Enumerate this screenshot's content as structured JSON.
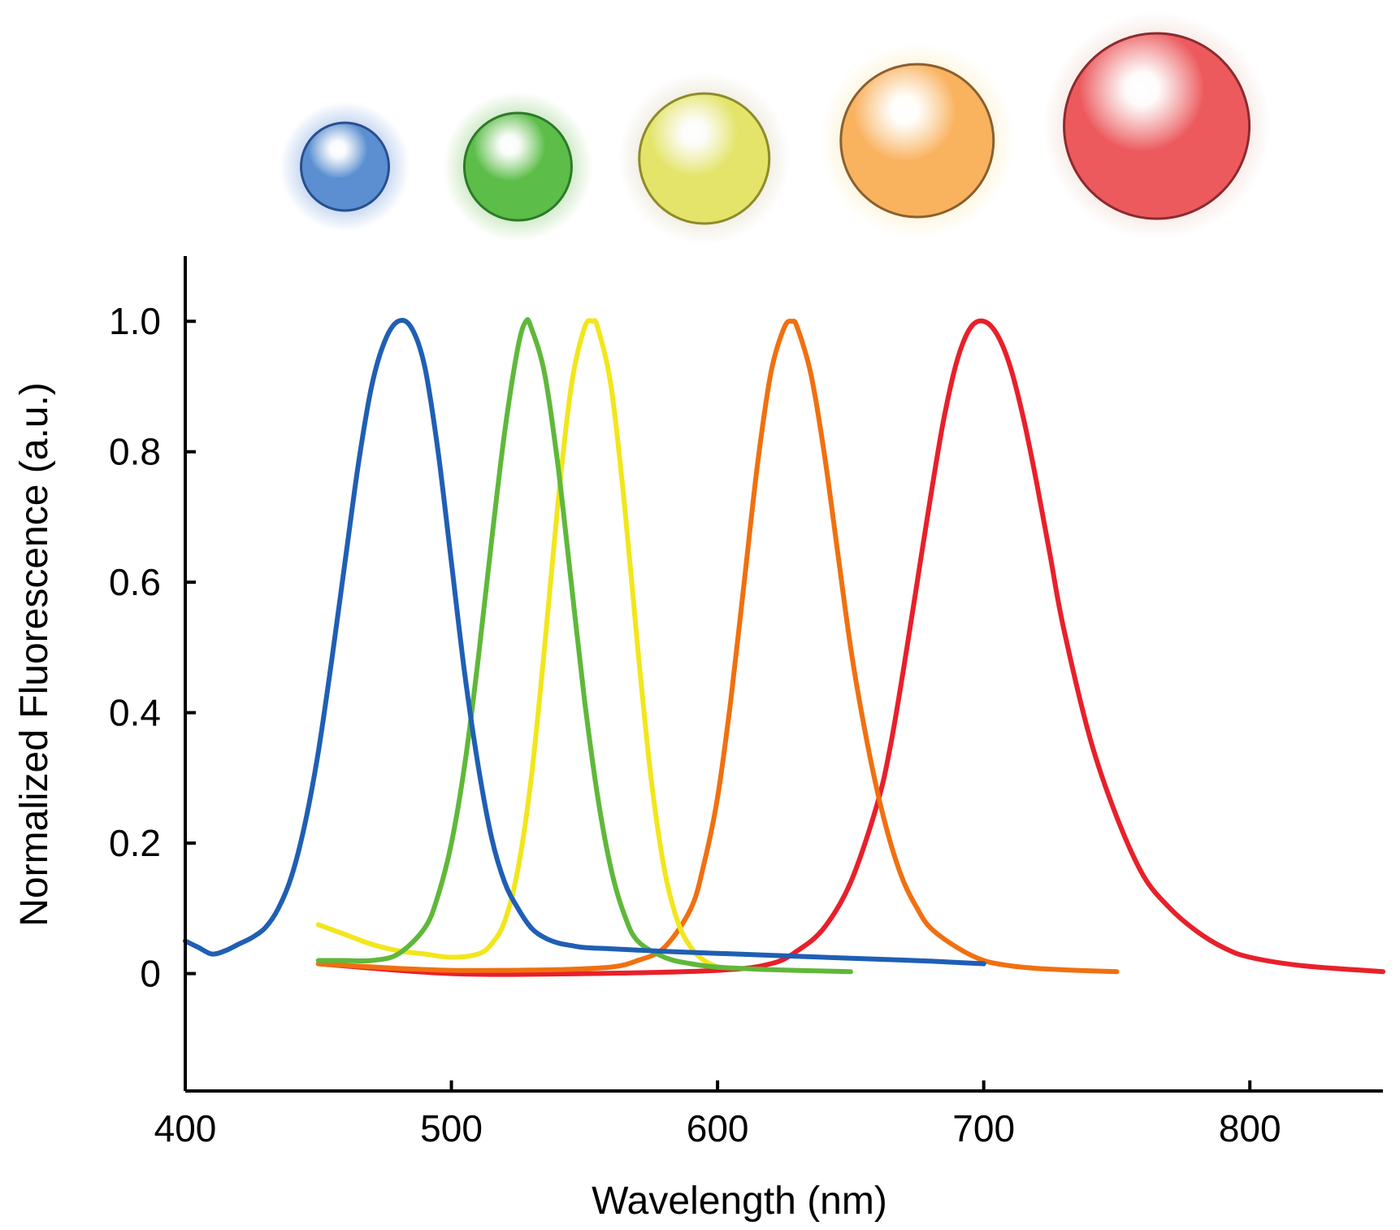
{
  "chart_data": {
    "type": "line",
    "title": "",
    "xlabel": "Wavelength (nm)",
    "ylabel": "Normalized Fluorescence (a.u.)",
    "xlim": [
      400,
      850
    ],
    "ylim": [
      -0.18,
      1.1
    ],
    "xticks": [
      400,
      500,
      600,
      700,
      800
    ],
    "xtick_labels": [
      "400",
      "500",
      "600",
      "700",
      "800"
    ],
    "yticks": [
      0,
      0.2,
      0.4,
      0.6,
      0.8,
      1.0
    ],
    "ytick_labels": [
      "0",
      "0.2",
      "0.4",
      "0.6",
      "0.8",
      "1.0"
    ],
    "grid": false,
    "legend": "none",
    "series": [
      {
        "name": "blue",
        "color": "#1f5fb4",
        "x": [
          400,
          405,
          410,
          415,
          420,
          425,
          430,
          435,
          440,
          445,
          450,
          455,
          460,
          465,
          470,
          475,
          480,
          485,
          490,
          495,
          500,
          505,
          510,
          515,
          520,
          525,
          530,
          535,
          540,
          545,
          550,
          560,
          570,
          580,
          600,
          620,
          640,
          660,
          680,
          700
        ],
        "values": [
          0.05,
          0.04,
          0.03,
          0.035,
          0.045,
          0.055,
          0.07,
          0.1,
          0.15,
          0.23,
          0.34,
          0.48,
          0.63,
          0.78,
          0.9,
          0.97,
          1.0,
          0.99,
          0.93,
          0.8,
          0.63,
          0.46,
          0.32,
          0.21,
          0.14,
          0.1,
          0.07,
          0.055,
          0.047,
          0.043,
          0.04,
          0.038,
          0.036,
          0.034,
          0.031,
          0.028,
          0.025,
          0.022,
          0.019,
          0.015
        ]
      },
      {
        "name": "green",
        "color": "#5fb83a",
        "x": [
          450,
          460,
          470,
          480,
          490,
          495,
          500,
          505,
          510,
          515,
          520,
          525,
          528,
          530,
          535,
          540,
          545,
          550,
          555,
          560,
          565,
          570,
          580,
          590,
          600,
          620,
          650
        ],
        "values": [
          0.02,
          0.02,
          0.02,
          0.03,
          0.07,
          0.12,
          0.2,
          0.32,
          0.48,
          0.66,
          0.83,
          0.96,
          1.0,
          0.99,
          0.92,
          0.78,
          0.6,
          0.42,
          0.27,
          0.16,
          0.09,
          0.05,
          0.025,
          0.015,
          0.01,
          0.006,
          0.003
        ]
      },
      {
        "name": "yellow",
        "color": "#f2e61c",
        "x": [
          450,
          460,
          470,
          480,
          490,
          500,
          510,
          515,
          520,
          525,
          530,
          535,
          540,
          545,
          550,
          553,
          555,
          560,
          565,
          570,
          575,
          580,
          585,
          590,
          595,
          600
        ],
        "values": [
          0.075,
          0.06,
          0.045,
          0.035,
          0.03,
          0.025,
          0.03,
          0.045,
          0.08,
          0.16,
          0.3,
          0.5,
          0.72,
          0.9,
          0.99,
          1.0,
          0.99,
          0.9,
          0.72,
          0.5,
          0.3,
          0.16,
          0.08,
          0.04,
          0.02,
          0.01
        ]
      },
      {
        "name": "orange",
        "color": "#f07010",
        "x": [
          450,
          480,
          500,
          520,
          540,
          560,
          570,
          580,
          590,
          595,
          600,
          605,
          610,
          615,
          620,
          625,
          628,
          630,
          635,
          640,
          645,
          650,
          655,
          660,
          665,
          670,
          675,
          680,
          690,
          700,
          710,
          720,
          735,
          750
        ],
        "values": [
          0.015,
          0.008,
          0.005,
          0.005,
          0.006,
          0.01,
          0.02,
          0.04,
          0.1,
          0.17,
          0.27,
          0.42,
          0.6,
          0.78,
          0.92,
          0.99,
          1.0,
          0.99,
          0.92,
          0.8,
          0.65,
          0.5,
          0.38,
          0.28,
          0.2,
          0.14,
          0.1,
          0.07,
          0.04,
          0.02,
          0.012,
          0.008,
          0.005,
          0.003
        ]
      },
      {
        "name": "red",
        "color": "#e8202a",
        "x": [
          450,
          500,
          550,
          600,
          620,
          630,
          640,
          650,
          660,
          665,
          670,
          675,
          680,
          685,
          690,
          695,
          700,
          705,
          710,
          715,
          720,
          725,
          730,
          740,
          750,
          760,
          770,
          780,
          790,
          800,
          820,
          850
        ],
        "values": [
          0.015,
          0.0,
          0.0,
          0.005,
          0.015,
          0.035,
          0.07,
          0.14,
          0.26,
          0.35,
          0.47,
          0.6,
          0.73,
          0.85,
          0.94,
          0.99,
          1.0,
          0.98,
          0.93,
          0.85,
          0.75,
          0.64,
          0.53,
          0.36,
          0.24,
          0.15,
          0.1,
          0.065,
          0.04,
          0.025,
          0.012,
          0.003
        ]
      }
    ],
    "markers": [
      {
        "name": "blue-dot",
        "x": 460,
        "fill": "#5b8fd1",
        "edge": "#2a4f8e",
        "glow": "#b7cdee"
      },
      {
        "name": "green-dot",
        "x": 525,
        "fill": "#5cbd48",
        "edge": "#2d7a2a",
        "glow": "#b9e0ad"
      },
      {
        "name": "yellow-dot",
        "x": 595,
        "fill": "#e4e46a",
        "edge": "#8c8c2a",
        "glow": "#e8e2cf"
      },
      {
        "name": "orange-dot",
        "x": 675,
        "fill": "#f9b25e",
        "edge": "#8a6030",
        "glow": "#fbeec4"
      },
      {
        "name": "red-dot",
        "x": 765,
        "fill": "#ec5a5e",
        "edge": "#8c2a2e",
        "glow": "#efd5cc"
      }
    ]
  }
}
